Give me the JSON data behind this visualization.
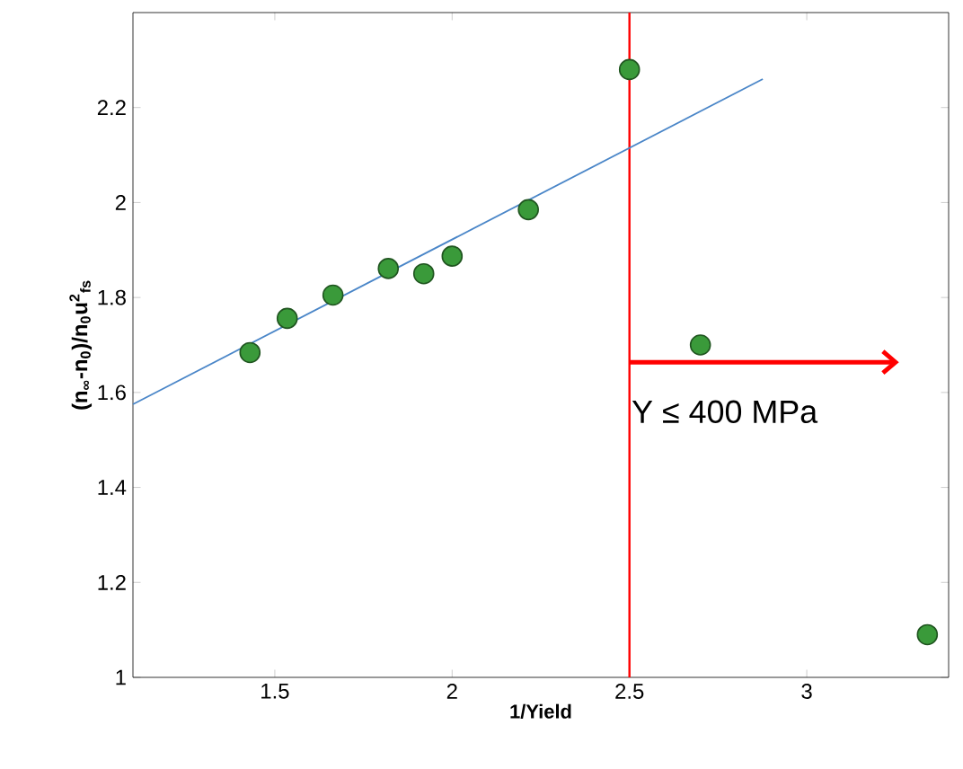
{
  "chart_data": {
    "type": "scatter",
    "xlabel": "1/Yield",
    "ylabel": "(n$_{∞}$-n$_{0}$)/n$_{0}$u$^{2}$$_{fs}$",
    "xlim": [
      1.1,
      3.4
    ],
    "ylim": [
      1,
      2.4
    ],
    "xticks": [
      1.5,
      2,
      2.5,
      3
    ],
    "yticks": [
      1,
      1.2,
      1.4,
      1.6,
      1.8,
      2,
      2.2
    ],
    "series": [
      {
        "color": "#3a9a3a",
        "marker": "circle",
        "x": [
          1.43,
          1.535,
          1.664,
          1.82,
          1.92,
          2.0,
          2.215,
          2.5,
          2.7,
          3.34
        ],
        "values": [
          1.684,
          1.756,
          1.805,
          1.861,
          1.85,
          1.887,
          1.985,
          2.28,
          1.7,
          1.09
        ]
      },
      {
        "type": "line",
        "color": "#4a86c8",
        "marker": "none",
        "line_style": "solid",
        "x": [
          1.1,
          2.876
        ],
        "values": [
          1.575,
          2.26
        ]
      }
    ],
    "ref_lines": [
      {
        "axis": "x",
        "value": 2.5,
        "label": "Y ≤ 400 MPa",
        "color": "#ff0000"
      }
    ]
  }
}
